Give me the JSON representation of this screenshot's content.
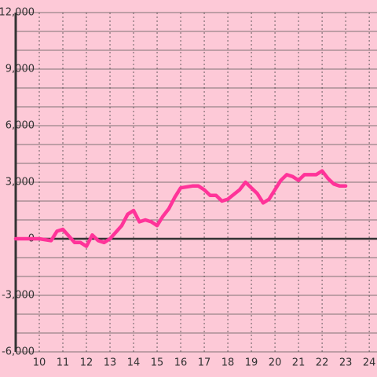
{
  "chart_data": {
    "type": "line",
    "x": [
      9,
      9.5,
      10,
      10.5,
      10.75,
      11,
      11.5,
      11.75,
      12,
      12.25,
      12.5,
      12.75,
      13,
      13.5,
      13.75,
      14,
      14.25,
      14.5,
      14.75,
      15,
      15.25,
      15.5,
      15.75,
      16,
      16.5,
      16.75,
      17,
      17.25,
      17.5,
      17.75,
      18,
      18.5,
      18.75,
      19,
      19.25,
      19.5,
      19.75,
      20,
      20.25,
      20.5,
      20.75,
      21,
      21.25,
      21.5,
      21.75,
      22,
      22.25,
      22.5,
      22.75,
      23
    ],
    "series": [
      {
        "color": "#ff3399",
        "values": [
          0,
          0,
          0,
          -100,
          400,
          500,
          -200,
          -200,
          -400,
          200,
          -100,
          -200,
          0,
          700,
          1300,
          1500,
          900,
          1000,
          900,
          700,
          1200,
          1600,
          2200,
          2700,
          2800,
          2800,
          2600,
          2300,
          2300,
          2000,
          2100,
          2600,
          3000,
          2700,
          2400,
          1900,
          2100,
          2600,
          3100,
          3400,
          3300,
          3100,
          3400,
          3400,
          3400,
          3600,
          3200,
          2900,
          2800,
          2800
        ]
      }
    ],
    "xlim": [
      9,
      24.33
    ],
    "xticks": [
      10,
      11,
      12,
      13,
      14,
      15,
      16,
      17,
      18,
      19,
      20,
      21,
      22,
      23,
      24
    ],
    "ylim": [
      -6000,
      12000
    ],
    "yticks": [
      {
        "value": -6000,
        "label": "-6,000"
      },
      {
        "value": -3000,
        "label": "-3,000"
      },
      0,
      {
        "value": 3000,
        "label": "3,000"
      },
      {
        "value": 6000,
        "label": "6,000"
      },
      {
        "value": 9000,
        "label": "9,000"
      },
      {
        "value": 12000,
        "label": "12,000"
      }
    ],
    "yminor": [
      -5000,
      -4000,
      -2000,
      -1000,
      1000,
      2000,
      4000,
      5000,
      7000,
      8000,
      10000,
      11000
    ],
    "grid": true
  }
}
